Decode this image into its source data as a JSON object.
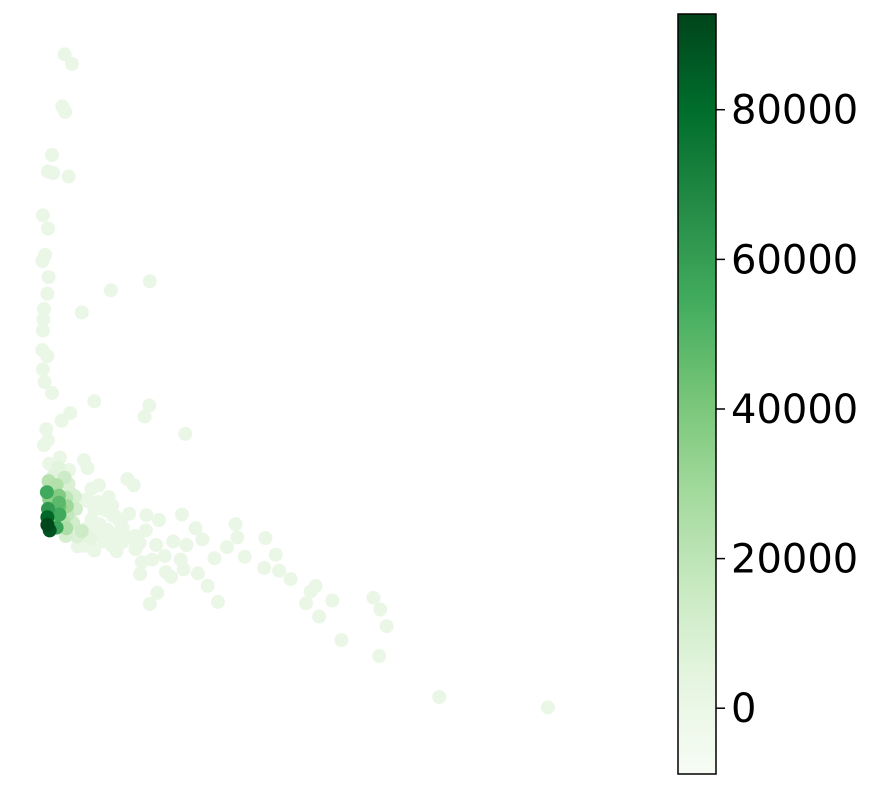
{
  "chart_data": {
    "type": "scatter",
    "title": "",
    "xlabel": "",
    "ylabel": "",
    "axes_visible": false,
    "xlim": [
      0,
      100
    ],
    "ylim": [
      0,
      100
    ],
    "colormap": "Greens",
    "colormap_stops": [
      "#f7fcf5",
      "#e5f5e0",
      "#c7e9c0",
      "#a1d99b",
      "#74c476",
      "#41ab5d",
      "#238b45",
      "#006d2c",
      "#00441b"
    ],
    "colorbar": {
      "min": -8800,
      "max": 92800,
      "ticks": [
        0,
        20000,
        40000,
        60000,
        80000
      ],
      "tick_labels": [
        "0",
        "20000",
        "40000",
        "60000",
        "80000"
      ]
    },
    "points": [
      [
        4.3,
        98.8,
        0
      ],
      [
        5.6,
        97.4,
        0
      ],
      [
        3.9,
        91.3,
        0
      ],
      [
        4.4,
        90.5,
        0
      ],
      [
        2.1,
        84.3,
        0
      ],
      [
        1.4,
        81.9,
        0
      ],
      [
        2.3,
        81.7,
        0
      ],
      [
        5.0,
        81.2,
        0
      ],
      [
        0.5,
        75.6,
        0
      ],
      [
        1.4,
        73.7,
        0
      ],
      [
        0.9,
        69.9,
        0
      ],
      [
        0.4,
        69.0,
        0
      ],
      [
        1.5,
        66.7,
        0
      ],
      [
        12.4,
        64.8,
        0
      ],
      [
        19.2,
        66.1,
        0
      ],
      [
        1.3,
        64.3,
        0
      ],
      [
        0.7,
        62.1,
        0
      ],
      [
        7.3,
        61.6,
        0
      ],
      [
        0.6,
        60.6,
        0
      ],
      [
        0.5,
        59.0,
        0
      ],
      [
        0.4,
        56.2,
        0
      ],
      [
        1.3,
        55.3,
        0
      ],
      [
        0.5,
        53.4,
        0
      ],
      [
        0.8,
        51.6,
        0
      ],
      [
        2.1,
        50.0,
        0
      ],
      [
        9.5,
        48.8,
        0
      ],
      [
        19.1,
        48.2,
        0
      ],
      [
        5.3,
        47.1,
        0
      ],
      [
        3.8,
        46.0,
        0
      ],
      [
        18.3,
        46.6,
        0
      ],
      [
        25.4,
        44.1,
        0
      ],
      [
        1.1,
        44.8,
        0
      ],
      [
        1.4,
        43.2,
        0
      ],
      [
        0.7,
        42.5,
        0
      ],
      [
        1.6,
        39.8,
        0
      ],
      [
        3.5,
        40.7,
        0
      ],
      [
        7.7,
        40.3,
        0
      ],
      [
        8.3,
        39.2,
        0
      ],
      [
        5.1,
        38.9,
        0
      ],
      [
        15.3,
        37.6,
        0
      ],
      [
        16.4,
        36.7,
        0
      ],
      [
        9.0,
        36.2,
        0
      ],
      [
        10.3,
        36.7,
        0
      ],
      [
        12.0,
        35.0,
        0
      ],
      [
        8.4,
        34.4,
        0
      ],
      [
        10.6,
        33.4,
        0
      ],
      [
        12.8,
        32.3,
        0
      ],
      [
        14.1,
        31.4,
        0
      ],
      [
        15.6,
        32.6,
        0
      ],
      [
        18.6,
        32.4,
        0
      ],
      [
        20.8,
        31.7,
        0
      ],
      [
        24.8,
        32.5,
        0
      ],
      [
        27.2,
        30.5,
        0
      ],
      [
        11.3,
        29.8,
        0
      ],
      [
        13.0,
        29.3,
        0
      ],
      [
        14.4,
        28.5,
        0
      ],
      [
        17.4,
        28.4,
        0
      ],
      [
        20.3,
        28.1,
        0
      ],
      [
        23.3,
        28.6,
        0
      ],
      [
        25.6,
        28.1,
        0
      ],
      [
        28.4,
        28.9,
        0
      ],
      [
        21.8,
        26.5,
        0
      ],
      [
        16.7,
        27.5,
        0
      ],
      [
        19.6,
        26.0,
        0
      ],
      [
        24.6,
        26.0,
        0
      ],
      [
        25.1,
        24.6,
        0
      ],
      [
        30.5,
        26.2,
        0
      ],
      [
        22.0,
        24.2,
        0
      ],
      [
        22.9,
        23.5,
        0
      ],
      [
        17.5,
        23.9,
        0
      ],
      [
        34.2,
        31.1,
        0
      ],
      [
        34.5,
        29.2,
        0
      ],
      [
        32.7,
        27.8,
        0
      ],
      [
        35.8,
        26.4,
        0
      ],
      [
        20.5,
        21.2,
        0
      ],
      [
        19.2,
        19.6,
        0
      ],
      [
        8.0,
        34.6,
        0
      ],
      [
        9.5,
        33.3,
        0
      ],
      [
        10.2,
        34.3,
        0
      ],
      [
        11.6,
        33.1,
        0
      ],
      [
        12.6,
        33.8,
        0
      ],
      [
        13.2,
        32.2,
        0
      ],
      [
        14.5,
        30.5,
        0
      ],
      [
        9.0,
        31.8,
        0
      ],
      [
        10.4,
        31.1,
        0
      ],
      [
        11.8,
        30.3,
        0
      ],
      [
        13.9,
        29.9,
        0
      ],
      [
        15.2,
        29.1,
        0
      ],
      [
        8.0,
        30.4,
        0
      ],
      [
        9.8,
        29.8,
        0
      ],
      [
        11.1,
        28.6,
        0
      ],
      [
        12.6,
        28.0,
        0
      ],
      [
        13.4,
        27.2,
        0
      ],
      [
        7.9,
        28.0,
        0
      ],
      [
        9.5,
        27.3,
        0
      ],
      [
        16.6,
        29.4,
        0
      ],
      [
        18.5,
        30.2,
        0
      ],
      [
        6.6,
        27.9,
        0
      ],
      [
        5.7,
        30.0,
        0
      ],
      [
        5.5,
        33.8,
        0
      ],
      [
        3.6,
        34.6,
        0
      ],
      [
        17.8,
        25.6,
        0
      ],
      [
        1.7,
        36.1,
        20000
      ],
      [
        2.9,
        36.7,
        24000
      ],
      [
        1.6,
        34.7,
        35000
      ],
      [
        3.4,
        33.6,
        42000
      ],
      [
        2.5,
        31.8,
        40000
      ],
      [
        4.8,
        32.5,
        18000
      ],
      [
        6.3,
        33.3,
        12000
      ],
      [
        5.8,
        31.3,
        12000
      ],
      [
        4.6,
        30.5,
        25000
      ],
      [
        5.0,
        36.9,
        8000
      ],
      [
        5.2,
        35.7,
        9000
      ],
      [
        2.3,
        38.0,
        6000
      ],
      [
        3.2,
        39.3,
        5000
      ],
      [
        1.5,
        37.3,
        22000
      ],
      [
        3.3,
        35.2,
        38000
      ],
      [
        3.4,
        32.5,
        55000
      ],
      [
        1.4,
        33.3,
        62000
      ],
      [
        1.3,
        32.1,
        82000
      ],
      [
        1.3,
        31.0,
        92000
      ],
      [
        1.7,
        30.2,
        88000
      ],
      [
        2.9,
        30.6,
        58000
      ],
      [
        4.1,
        31.5,
        22000
      ],
      [
        3.3,
        34.2,
        48000
      ],
      [
        4.6,
        34.9,
        20000
      ],
      [
        1.2,
        35.7,
        55000
      ],
      [
        4.7,
        33.7,
        30000
      ],
      [
        6.1,
        35.1,
        10000
      ],
      [
        4.3,
        37.8,
        14000
      ],
      [
        7.3,
        30.1,
        14000
      ],
      [
        8.8,
        29.0,
        4000
      ],
      [
        6.5,
        29.3,
        8000
      ],
      [
        4.5,
        29.4,
        10000
      ],
      [
        43.8,
        23.2,
        0
      ],
      [
        47.3,
        21.4,
        0
      ],
      [
        48.2,
        22.2,
        0
      ],
      [
        46.5,
        19.7,
        0
      ],
      [
        51.1,
        20.1,
        0
      ],
      [
        48.8,
        17.8,
        0
      ],
      [
        58.3,
        20.5,
        0
      ],
      [
        59.5,
        18.8,
        0
      ],
      [
        60.6,
        16.4,
        0
      ],
      [
        41.8,
        24.4,
        0
      ],
      [
        39.2,
        24.8,
        0
      ],
      [
        39.4,
        29.1,
        0
      ],
      [
        41.2,
        26.7,
        0
      ],
      [
        31.1,
        19.9,
        0
      ],
      [
        29.3,
        22.2,
        0
      ],
      [
        52.7,
        14.4,
        0
      ],
      [
        59.3,
        12.1,
        0
      ],
      [
        69.8,
        6.2,
        0
      ],
      [
        88.8,
        4.7,
        0
      ],
      [
        27.6,
        24.0,
        0
      ]
    ]
  }
}
